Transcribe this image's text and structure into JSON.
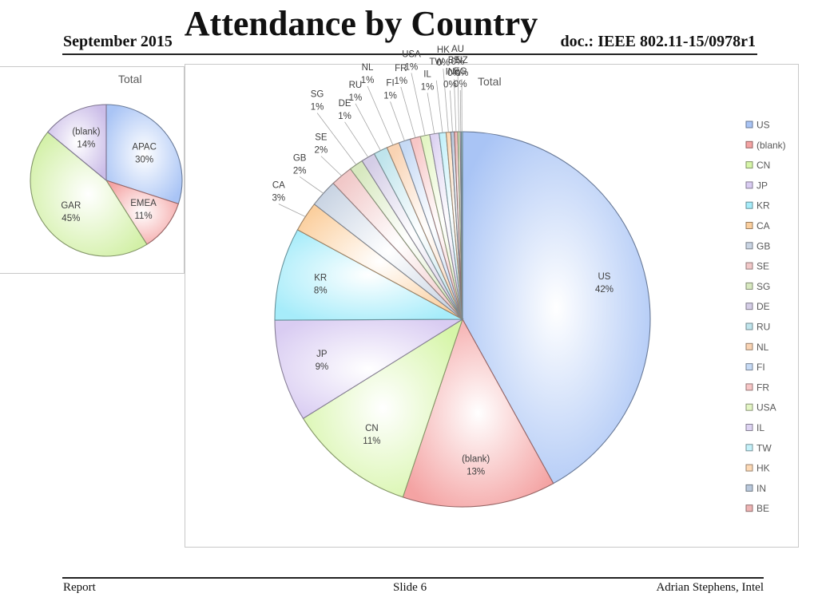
{
  "header": {
    "title": "Attendance by Country",
    "date": "September 2015",
    "doc": "doc.: IEEE 802.11-15/0978r1"
  },
  "footer": {
    "left": "Report",
    "middle": "Slide 6",
    "right": "Adrian Stephens, Intel"
  },
  "chart_data": [
    {
      "type": "pie",
      "title": "Total",
      "legend": "none",
      "slices": [
        {
          "label": "APAC",
          "pct_label": "30%",
          "value": 30,
          "color": "#a9c4f5"
        },
        {
          "label": "EMEA",
          "pct_label": "11%",
          "value": 11,
          "color": "#f4a3a3"
        },
        {
          "label": "GAR",
          "pct_label": "45%",
          "value": 45,
          "color": "#d2f0a6"
        },
        {
          "label": "(blank)",
          "pct_label": "14%",
          "value": 14,
          "color": "#cbbde8"
        }
      ]
    },
    {
      "type": "pie",
      "title": "Total",
      "legend": "right",
      "legend_entries": [
        "US",
        "(blank)",
        "CN",
        "JP",
        "KR",
        "CA",
        "GB",
        "SE",
        "SG",
        "DE",
        "RU",
        "NL",
        "FI",
        "FR",
        "USA",
        "IL",
        "TW",
        "HK",
        "IN",
        "BE"
      ],
      "slices": [
        {
          "label": "US",
          "pct_label": "42%",
          "value": 42.0,
          "color": "#a9c4f5"
        },
        {
          "label": "(blank)",
          "pct_label": "13%",
          "value": 13.2,
          "color": "#f4a3a3"
        },
        {
          "label": "CN",
          "pct_label": "11%",
          "value": 11.0,
          "color": "#d6f5a8"
        },
        {
          "label": "JP",
          "pct_label": "9%",
          "value": 8.8,
          "color": "#d9ccf2"
        },
        {
          "label": "KR",
          "pct_label": "8%",
          "value": 8.0,
          "color": "#a6ecfa"
        },
        {
          "label": "CA",
          "pct_label": "3%",
          "value": 2.6,
          "color": "#fbcf9e"
        },
        {
          "label": "GB",
          "pct_label": "2%",
          "value": 2.4,
          "color": "#c9d4e3"
        },
        {
          "label": "SE",
          "pct_label": "2%",
          "value": 1.9,
          "color": "#f1c8c8"
        },
        {
          "label": "SG",
          "pct_label": "1%",
          "value": 1.2,
          "color": "#d7e8bf"
        },
        {
          "label": "DE",
          "pct_label": "1%",
          "value": 1.2,
          "color": "#d4cde6"
        },
        {
          "label": "RU",
          "pct_label": "1%",
          "value": 1.2,
          "color": "#bfe4ec"
        },
        {
          "label": "NL",
          "pct_label": "1%",
          "value": 1.1,
          "color": "#f9d3b3"
        },
        {
          "label": "FI",
          "pct_label": "1%",
          "value": 1.0,
          "color": "#c6daf5"
        },
        {
          "label": "FR",
          "pct_label": "1%",
          "value": 0.9,
          "color": "#f7c6c6"
        },
        {
          "label": "USA",
          "pct_label": "1%",
          "value": 0.8,
          "color": "#e3f5c4"
        },
        {
          "label": "IL",
          "pct_label": "1%",
          "value": 0.8,
          "color": "#ddd3f2"
        },
        {
          "label": "TW",
          "pct_label": "",
          "value": 0.6,
          "color": "#c4f1fa"
        },
        {
          "label": "HK",
          "pct_label": "0%",
          "value": 0.4,
          "color": "#fdd9b5"
        },
        {
          "label": "IN",
          "pct_label": "0%",
          "value": 0.3,
          "color": "#b9c8dc"
        },
        {
          "label": "BE",
          "pct_label": "0%",
          "value": 0.3,
          "color": "#eeb4b4"
        },
        {
          "label": "AU",
          "pct_label": "0%",
          "value": 0.2,
          "color": "#cfe3b5"
        },
        {
          "label": "EG",
          "pct_label": "0%",
          "value": 0.1,
          "color": "#c9c0dd"
        },
        {
          "label": "NZ",
          "pct_label": "0%",
          "value": 0.1,
          "color": "#b3dde8"
        }
      ]
    }
  ]
}
